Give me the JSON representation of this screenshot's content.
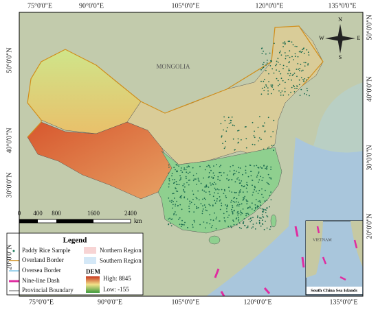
{
  "lon_labels": [
    "75°0'0\"E",
    "90°0'0\"E",
    "105°0'0\"E",
    "120°0'0\"E",
    "135°0'0\"E"
  ],
  "lat_labels": [
    "50°0'0\"N",
    "40°0'0\"N",
    "30°0'0\"N",
    "20°0'0\"N"
  ],
  "scale_bar": {
    "ticks": [
      "0",
      "400",
      "800",
      "1600",
      "2400"
    ],
    "unit": "km"
  },
  "map_labels": {
    "mongolia": "MONGOLIA",
    "vietnam": "VIETNAM"
  },
  "compass": {
    "n": "N",
    "s": "S",
    "e": "E",
    "w": "W"
  },
  "inset": {
    "title": "South China Sea Islands"
  },
  "legend": {
    "title": "Legend",
    "items": [
      "Paddy Rice Sample",
      "Overland Border",
      "Oversea Border",
      "Nine-line Dash",
      "Provincial Boundary"
    ],
    "regions": [
      "Northern Region",
      "Southern Region"
    ],
    "dem": {
      "title": "DEM",
      "high": "High: 8845",
      "low": "Low: -155"
    }
  }
}
